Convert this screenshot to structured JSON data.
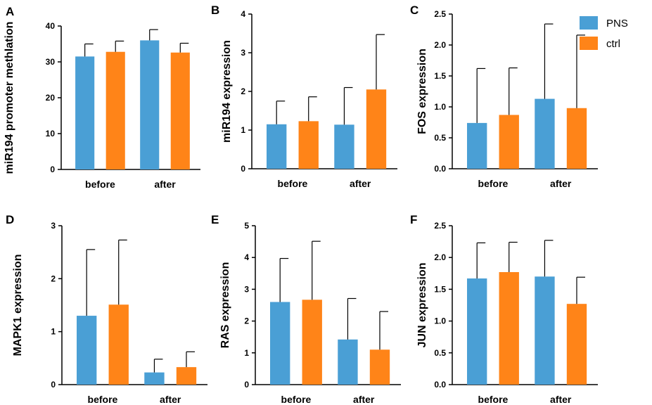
{
  "legend": {
    "entries": [
      {
        "name": "PNS",
        "color": "#4a9fd5"
      },
      {
        "name": "ctrl",
        "color": "#ff8418"
      }
    ]
  },
  "chart_data": [
    {
      "type": "bar",
      "letter": "A",
      "ylabel": "miR194 promoter methlation",
      "categories": [
        "before",
        "after"
      ],
      "ylim": [
        0,
        40
      ],
      "yticks": [
        "0",
        "10",
        "20",
        "30",
        "40"
      ],
      "series": [
        {
          "name": "PNS",
          "values": [
            31.5,
            36.0
          ],
          "errors": [
            3.5,
            3.0
          ]
        },
        {
          "name": "ctrl",
          "values": [
            32.8,
            32.6
          ],
          "errors": [
            3.0,
            2.6
          ]
        }
      ]
    },
    {
      "type": "bar",
      "letter": "B",
      "ylabel": "miR194 expression",
      "categories": [
        "before",
        "after"
      ],
      "ylim": [
        0,
        4
      ],
      "yticks": [
        "0",
        "1",
        "2",
        "3",
        "4"
      ],
      "series": [
        {
          "name": "PNS",
          "values": [
            1.15,
            1.14
          ],
          "errors": [
            0.6,
            0.96
          ]
        },
        {
          "name": "ctrl",
          "values": [
            1.23,
            2.05
          ],
          "errors": [
            0.63,
            1.42
          ]
        }
      ]
    },
    {
      "type": "bar",
      "letter": "C",
      "ylabel": "FOS expression",
      "categories": [
        "before",
        "after"
      ],
      "ylim": [
        0,
        2.5
      ],
      "yticks": [
        "0.0",
        "0.5",
        "1.0",
        "1.5",
        "2.0",
        "2.5"
      ],
      "series": [
        {
          "name": "PNS",
          "values": [
            0.74,
            1.13
          ],
          "errors": [
            0.88,
            1.21
          ]
        },
        {
          "name": "ctrl",
          "values": [
            0.87,
            0.98
          ],
          "errors": [
            0.76,
            1.18
          ]
        }
      ]
    },
    {
      "type": "bar",
      "letter": "D",
      "ylabel": "MAPK1 expression",
      "categories": [
        "before",
        "after"
      ],
      "ylim": [
        0,
        3
      ],
      "yticks": [
        "0",
        "1",
        "2",
        "3"
      ],
      "series": [
        {
          "name": "PNS",
          "values": [
            1.3,
            0.23
          ],
          "errors": [
            1.25,
            0.25
          ]
        },
        {
          "name": "ctrl",
          "values": [
            1.51,
            0.33
          ],
          "errors": [
            1.22,
            0.29
          ]
        }
      ]
    },
    {
      "type": "bar",
      "letter": "E",
      "ylabel": "RAS expression",
      "categories": [
        "before",
        "after"
      ],
      "ylim": [
        0,
        5
      ],
      "yticks": [
        "0",
        "1",
        "2",
        "3",
        "4",
        "5"
      ],
      "series": [
        {
          "name": "PNS",
          "values": [
            2.6,
            1.42
          ],
          "errors": [
            1.37,
            1.29
          ]
        },
        {
          "name": "ctrl",
          "values": [
            2.67,
            1.1
          ],
          "errors": [
            1.84,
            1.2
          ]
        }
      ]
    },
    {
      "type": "bar",
      "letter": "F",
      "ylabel": "JUN expression",
      "categories": [
        "before",
        "after"
      ],
      "ylim": [
        0,
        2.5
      ],
      "yticks": [
        "0.0",
        "0.5",
        "1.0",
        "1.5",
        "2.0",
        "2.5"
      ],
      "series": [
        {
          "name": "PNS",
          "values": [
            1.67,
            1.7
          ],
          "errors": [
            0.56,
            0.57
          ]
        },
        {
          "name": "ctrl",
          "values": [
            1.77,
            1.27
          ],
          "errors": [
            0.47,
            0.42
          ]
        }
      ]
    }
  ]
}
